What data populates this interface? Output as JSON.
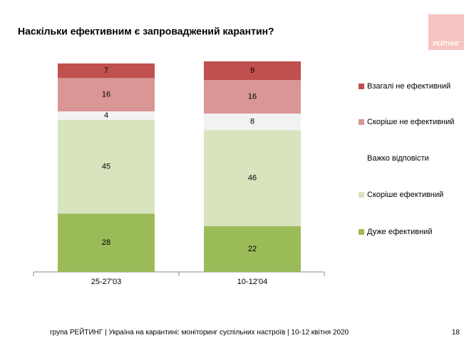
{
  "chart_data": {
    "type": "stacked_bar",
    "title": "Наскільки ефективним є запроваджений карантин?",
    "categories": [
      "25-27'03",
      "10-12'04"
    ],
    "series": [
      {
        "name": "Дуже ефективний",
        "color": "#9bbb59",
        "values": [
          28,
          22
        ]
      },
      {
        "name": "Скоріше ефективний",
        "color": "#d7e4bd",
        "values": [
          45,
          46
        ]
      },
      {
        "name": "Важко відповісти",
        "color": "#f2f2f2",
        "values": [
          4,
          8
        ]
      },
      {
        "name": "Скоріше не ефективний",
        "color": "#d99694",
        "values": [
          16,
          16
        ]
      },
      {
        "name": "Взагалі не ефективний",
        "color": "#c0504d",
        "values": [
          7,
          9
        ]
      }
    ]
  },
  "logo": "РЕЙТИНГ",
  "footer": "група РЕЙТИНГ | Україна на карантині: моніторинг суспільних настроїв  | 10-12 квітня  2020",
  "page_number": "18"
}
